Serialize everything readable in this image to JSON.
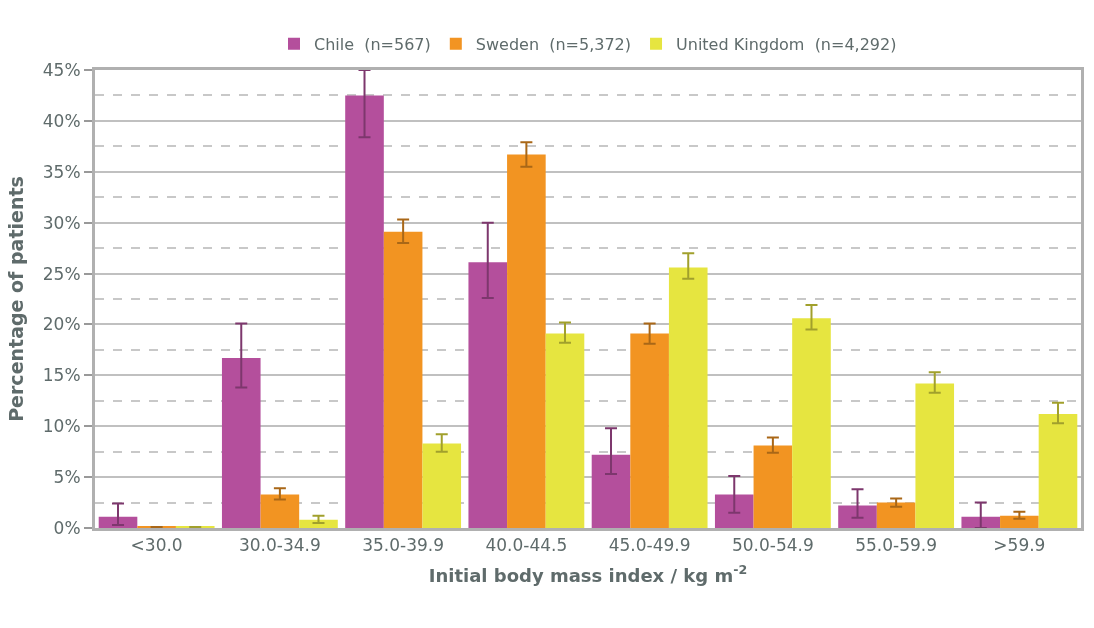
{
  "chart_data": {
    "type": "bar",
    "xlabel": "Initial body mass index / kg m$^{-2}$",
    "ylabel": "Percentage of patients",
    "categories": [
      "<30.0",
      "30.0-34.9",
      "35.0-39.9",
      "40.0-44.5",
      "45.0-49.9",
      "50.0-54.9",
      "55.0-59.9",
      ">59.9"
    ],
    "series": [
      {
        "name": "Chile  (n=567)",
        "color": "#b44f9c",
        "values": [
          1.1,
          16.7,
          42.5,
          26.1,
          7.2,
          3.3,
          2.2,
          1.1
        ],
        "errors": [
          [
            0.3,
            2.4
          ],
          [
            13.8,
            20.1
          ],
          [
            38.4,
            45.0
          ],
          [
            22.6,
            30.0
          ],
          [
            5.3,
            9.8
          ],
          [
            1.5,
            5.1
          ],
          [
            1.0,
            3.8
          ],
          [
            0.0,
            2.5
          ]
        ]
      },
      {
        "name": "Sweden  (n=5,372)",
        "color": "#f29422",
        "values": [
          0.1,
          3.3,
          29.1,
          36.7,
          19.1,
          8.1,
          2.5,
          1.2
        ],
        "errors": [
          null,
          [
            2.8,
            3.9
          ],
          [
            28.0,
            30.3
          ],
          [
            35.5,
            37.9
          ],
          [
            18.1,
            20.1
          ],
          [
            7.4,
            8.9
          ],
          [
            2.1,
            2.9
          ],
          [
            0.9,
            1.6
          ]
        ]
      },
      {
        "name": "United Kingdom  (n=4,292)",
        "color": "#e6e540",
        "values": [
          0.1,
          0.8,
          8.3,
          19.1,
          25.6,
          20.6,
          14.2,
          11.2
        ],
        "errors": [
          null,
          [
            0.5,
            1.2
          ],
          [
            7.5,
            9.2
          ],
          [
            18.2,
            20.2
          ],
          [
            24.5,
            27.0
          ],
          [
            19.5,
            21.9
          ],
          [
            13.3,
            15.3
          ],
          [
            10.3,
            12.3
          ]
        ]
      }
    ],
    "ylim": [
      0,
      45
    ],
    "yticks": [
      {
        "value": 0,
        "label": "0%"
      },
      {
        "value": 5,
        "label": "5%"
      },
      {
        "value": 10,
        "label": "10%"
      },
      {
        "value": 15,
        "label": "15%"
      },
      {
        "value": 20,
        "label": "20%"
      },
      {
        "value": 25,
        "label": "25%"
      },
      {
        "value": 30,
        "label": "30%"
      },
      {
        "value": 35,
        "label": "35%"
      },
      {
        "value": 40,
        "label": "40%"
      },
      {
        "value": 45,
        "label": "45%"
      }
    ],
    "grid": "y",
    "legend": "top"
  }
}
